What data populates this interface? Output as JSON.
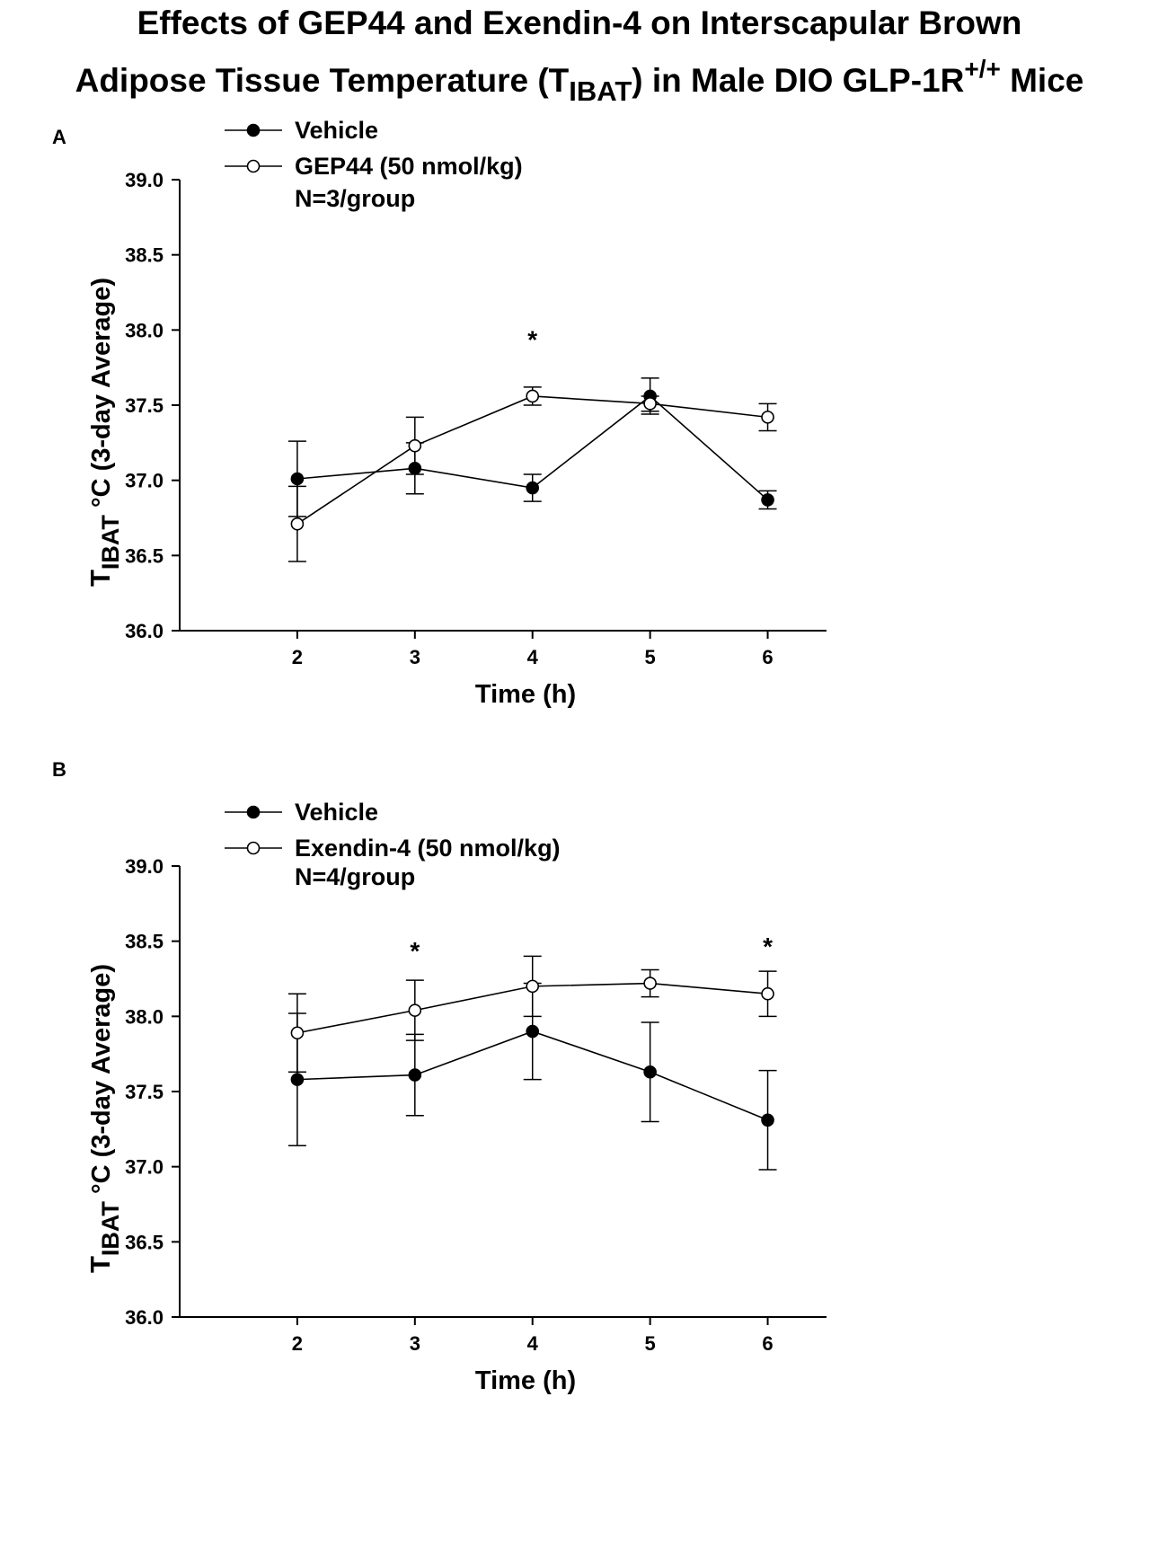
{
  "figure": {
    "title_line1": "Effects of GEP44 and Exendin-4 on Interscapular Brown",
    "title_line2_prefix": "Adipose Tissue Temperature (T",
    "title_line2_sub": "IBAT",
    "title_line2_mid": ") in Male DIO GLP-1R",
    "title_line2_sup": "+/+",
    "title_line2_suffix": " Mice"
  },
  "colors": {
    "ink": "#000000",
    "background": "#ffffff",
    "open_marker_fill": "#ffffff"
  },
  "chart_data": [
    {
      "panel": "A",
      "type": "line",
      "x": [
        2,
        3,
        4,
        5,
        6
      ],
      "xlim": [
        1.0,
        6.5
      ],
      "ylim": [
        36.0,
        39.0
      ],
      "yticks": [
        "36.0",
        "36.5",
        "37.0",
        "37.5",
        "38.0",
        "38.5",
        "39.0"
      ],
      "xticks": [
        "2",
        "3",
        "4",
        "5",
        "6"
      ],
      "xlabel": "Time (h)",
      "ylabel_main": "T",
      "ylabel_sub": "IBAT",
      "ylabel_rest": " °C (3-day Average)",
      "note": "N=3/group",
      "series": [
        {
          "name": "Vehicle",
          "marker": "filled",
          "values": [
            37.01,
            37.08,
            36.95,
            37.56,
            36.87
          ],
          "errors": [
            0.25,
            0.17,
            0.09,
            0.12,
            0.06
          ]
        },
        {
          "name": "GEP44 (50 nmol/kg)",
          "marker": "open",
          "values": [
            36.71,
            37.23,
            37.56,
            37.51,
            37.42
          ],
          "errors": [
            0.25,
            0.19,
            0.06,
            0.05,
            0.09
          ]
        }
      ],
      "significance": [
        {
          "x": 4,
          "label": "*",
          "y": 37.95
        }
      ]
    },
    {
      "panel": "B",
      "type": "line",
      "x": [
        2,
        3,
        4,
        5,
        6
      ],
      "xlim": [
        1.0,
        6.5
      ],
      "ylim": [
        36.0,
        39.0
      ],
      "yticks": [
        "36.0",
        "36.5",
        "37.0",
        "37.5",
        "38.0",
        "38.5",
        "39.0"
      ],
      "xticks": [
        "2",
        "3",
        "4",
        "5",
        "6"
      ],
      "xlabel": "Time (h)",
      "ylabel_main": "T",
      "ylabel_sub": "IBAT",
      "ylabel_rest": " °C (3-day Average)",
      "note": "N=4/group",
      "series": [
        {
          "name": "Vehicle",
          "marker": "filled",
          "values": [
            37.58,
            37.61,
            37.9,
            37.63,
            37.31
          ],
          "errors": [
            0.44,
            0.27,
            0.32,
            0.33,
            0.33
          ]
        },
        {
          "name": "Exendin-4 (50 nmol/kg)",
          "marker": "open",
          "values": [
            37.89,
            38.04,
            38.2,
            38.22,
            38.15
          ],
          "errors": [
            0.26,
            0.2,
            0.2,
            0.09,
            0.15
          ]
        }
      ],
      "significance": [
        {
          "x": 3,
          "label": "*",
          "y": 38.45
        },
        {
          "x": 6,
          "label": "*",
          "y": 38.48
        }
      ]
    }
  ]
}
